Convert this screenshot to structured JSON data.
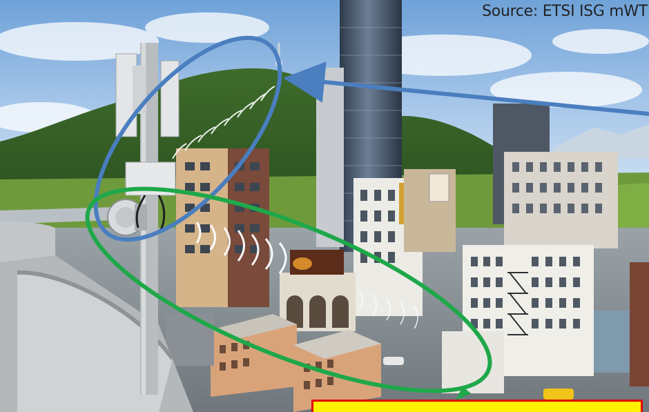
{
  "source_label": "Source: ETSI ISG mWT",
  "colors": {
    "blue_ring": "#4a7ebf",
    "green_ring": "#1fa84a",
    "callout_fill": "#fff200",
    "callout_border": "#e00000"
  },
  "icons": [
    "antenna-tower-icon",
    "microwave-dish-icon",
    "arrow-icon"
  ]
}
